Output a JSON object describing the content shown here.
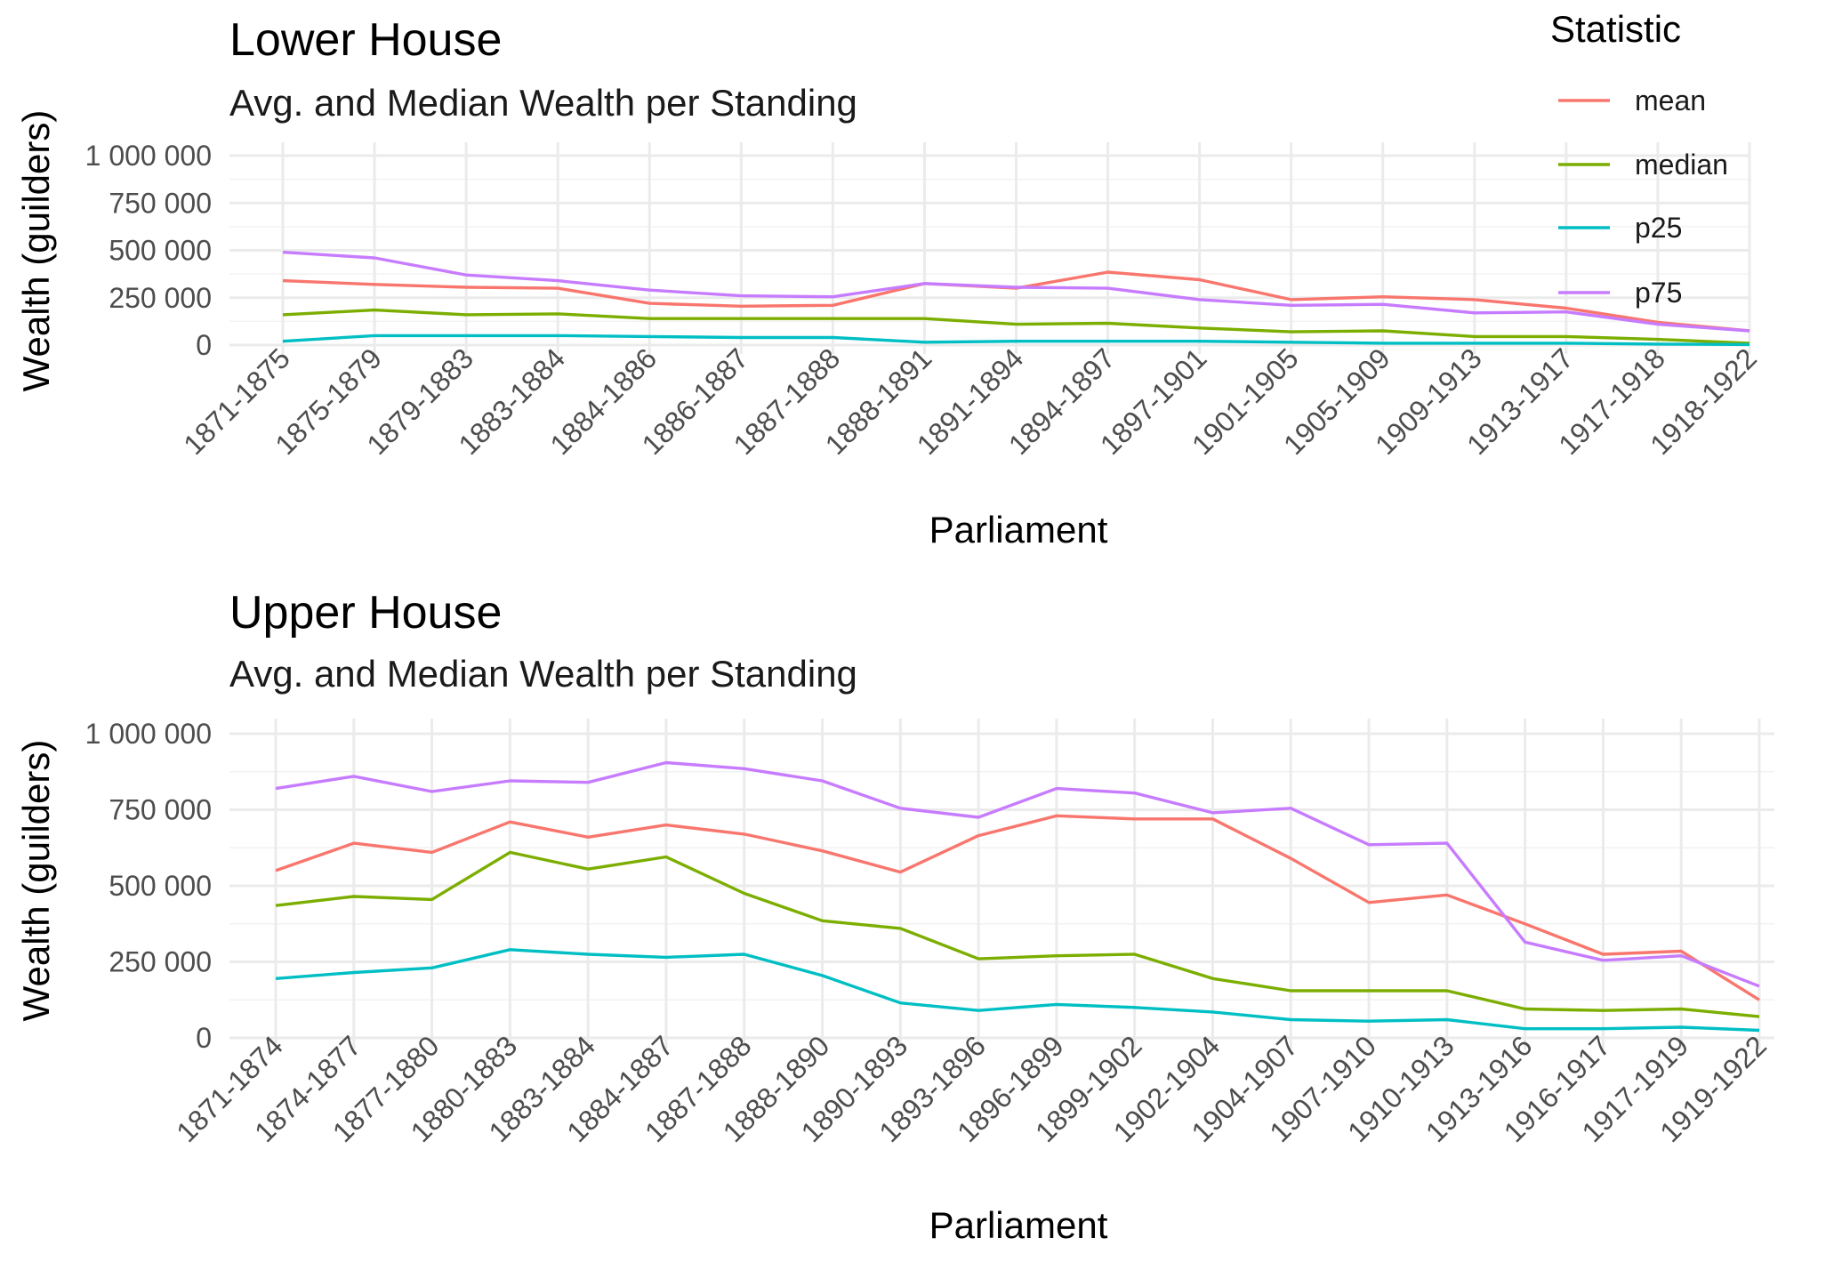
{
  "colors": {
    "mean": "#F8766D",
    "median": "#7CAE00",
    "p25": "#00BFC4",
    "p75": "#C77CFF"
  },
  "legend": {
    "title": "Statistic",
    "items": [
      {
        "key": "mean",
        "label": "mean"
      },
      {
        "key": "median",
        "label": "median"
      },
      {
        "key": "p25",
        "label": "p25"
      },
      {
        "key": "p75",
        "label": "p75"
      }
    ],
    "placement": "top-right"
  },
  "chart_data": [
    {
      "type": "line",
      "title": "Lower House",
      "subtitle": "Avg. and Median Wealth per Standing",
      "xlabel": "Parliament",
      "ylabel": "Wealth (guilders)",
      "ylim": [
        0,
        1000000
      ],
      "yticks": [
        0,
        250000,
        500000,
        750000,
        1000000
      ],
      "ytick_labels": [
        "0",
        "250 000",
        "500 000",
        "750 000",
        "1 000 000"
      ],
      "grid": true,
      "categories": [
        "1871-1875",
        "1875-1879",
        "1879-1883",
        "1883-1884",
        "1884-1886",
        "1886-1887",
        "1887-1888",
        "1888-1891",
        "1891-1894",
        "1894-1897",
        "1897-1901",
        "1901-1905",
        "1905-1909",
        "1909-1913",
        "1913-1917",
        "1917-1918",
        "1918-1922"
      ],
      "series": [
        {
          "name": "mean",
          "values": [
            340000,
            320000,
            305000,
            300000,
            220000,
            205000,
            210000,
            325000,
            300000,
            385000,
            345000,
            240000,
            255000,
            240000,
            195000,
            120000,
            75000
          ]
        },
        {
          "name": "median",
          "values": [
            160000,
            185000,
            160000,
            165000,
            140000,
            140000,
            140000,
            140000,
            110000,
            115000,
            90000,
            70000,
            75000,
            45000,
            45000,
            30000,
            10000
          ]
        },
        {
          "name": "p25",
          "values": [
            20000,
            50000,
            50000,
            50000,
            45000,
            40000,
            40000,
            15000,
            20000,
            20000,
            20000,
            15000,
            10000,
            10000,
            10000,
            5000,
            3000
          ]
        },
        {
          "name": "p75",
          "values": [
            490000,
            460000,
            370000,
            340000,
            290000,
            260000,
            255000,
            325000,
            305000,
            300000,
            240000,
            210000,
            215000,
            170000,
            175000,
            110000,
            75000
          ]
        }
      ]
    },
    {
      "type": "line",
      "title": "Upper House",
      "subtitle": "Avg. and Median Wealth per Standing",
      "xlabel": "Parliament",
      "ylabel": "Wealth (guilders)",
      "ylim": [
        0,
        1000000
      ],
      "yticks": [
        0,
        250000,
        500000,
        750000,
        1000000
      ],
      "ytick_labels": [
        "0",
        "250 000",
        "500 000",
        "750 000",
        "1 000 000"
      ],
      "grid": true,
      "categories": [
        "1871-1874",
        "1874-1877",
        "1877-1880",
        "1880-1883",
        "1883-1884",
        "1884-1887",
        "1887-1888",
        "1888-1890",
        "1890-1893",
        "1893-1896",
        "1896-1899",
        "1899-1902",
        "1902-1904",
        "1904-1907",
        "1907-1910",
        "1910-1913",
        "1913-1916",
        "1916-1917",
        "1917-1919",
        "1919-1922"
      ],
      "series": [
        {
          "name": "mean",
          "values": [
            550000,
            640000,
            610000,
            710000,
            660000,
            700000,
            670000,
            615000,
            545000,
            665000,
            730000,
            720000,
            720000,
            590000,
            445000,
            470000,
            375000,
            275000,
            285000,
            125000
          ]
        },
        {
          "name": "median",
          "values": [
            435000,
            465000,
            455000,
            610000,
            555000,
            595000,
            475000,
            385000,
            360000,
            260000,
            270000,
            275000,
            195000,
            155000,
            155000,
            155000,
            95000,
            90000,
            95000,
            70000
          ]
        },
        {
          "name": "p25",
          "values": [
            195000,
            215000,
            230000,
            290000,
            275000,
            265000,
            275000,
            205000,
            115000,
            90000,
            110000,
            100000,
            85000,
            60000,
            55000,
            60000,
            30000,
            30000,
            35000,
            25000
          ]
        },
        {
          "name": "p75",
          "values": [
            820000,
            860000,
            810000,
            845000,
            840000,
            905000,
            885000,
            845000,
            755000,
            725000,
            820000,
            805000,
            740000,
            755000,
            635000,
            640000,
            315000,
            255000,
            270000,
            170000
          ]
        }
      ]
    }
  ]
}
